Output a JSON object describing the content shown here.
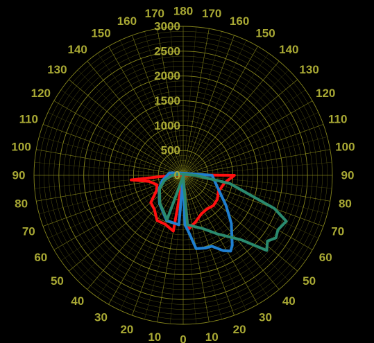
{
  "chart_data": {
    "type": "polar-line",
    "title": "",
    "angle_ticks_left": [
      180,
      170,
      160,
      150,
      140,
      130,
      120,
      110,
      100,
      90,
      80,
      70,
      60,
      50,
      40,
      30,
      20,
      10,
      0
    ],
    "angle_ticks_right": [
      170,
      160,
      150,
      140,
      130,
      120,
      110,
      100,
      90,
      80,
      70,
      60,
      50,
      40,
      30,
      20,
      10
    ],
    "radial_ticks": [
      0,
      500,
      1000,
      1500,
      2000,
      2500,
      3000
    ],
    "rlim": [
      0,
      3000
    ],
    "grid": true,
    "colors": {
      "background": "#000000",
      "grid": "#8c8c1c",
      "labels": "#a8a834"
    },
    "series": [
      {
        "color": "#ff1010",
        "points": [
          {
            "side": "left",
            "angle": 0,
            "r": 20
          },
          {
            "side": "left",
            "angle": 10,
            "r": 1140
          },
          {
            "side": "left",
            "angle": 20,
            "r": 1050
          },
          {
            "side": "left",
            "angle": 30,
            "r": 1050
          },
          {
            "side": "left",
            "angle": 40,
            "r": 900
          },
          {
            "side": "left",
            "angle": 50,
            "r": 850
          },
          {
            "side": "left",
            "angle": 60,
            "r": 620
          },
          {
            "side": "left",
            "angle": 70,
            "r": 560
          },
          {
            "side": "left",
            "angle": 80,
            "r": 700
          },
          {
            "side": "left",
            "angle": 85,
            "r": 1050
          },
          {
            "side": "left",
            "angle": 90,
            "r": 220
          },
          {
            "side": "left",
            "angle": 110,
            "r": 30
          },
          {
            "side": "right",
            "angle": 90,
            "r": 1030
          },
          {
            "side": "right",
            "angle": 80,
            "r": 850
          },
          {
            "side": "right",
            "angle": 65,
            "r": 780
          },
          {
            "side": "right",
            "angle": 55,
            "r": 840
          },
          {
            "side": "right",
            "angle": 45,
            "r": 860
          },
          {
            "side": "right",
            "angle": 35,
            "r": 830
          },
          {
            "side": "right",
            "angle": 25,
            "r": 860
          },
          {
            "side": "right",
            "angle": 15,
            "r": 970
          },
          {
            "side": "right",
            "angle": 5,
            "r": 1100
          },
          {
            "side": "left",
            "angle": 0,
            "r": 20
          }
        ]
      },
      {
        "color": "#1f7fd0",
        "points": [
          {
            "side": "left",
            "angle": 0,
            "r": 20
          },
          {
            "side": "left",
            "angle": 5,
            "r": 1000
          },
          {
            "side": "left",
            "angle": 20,
            "r": 970
          },
          {
            "side": "left",
            "angle": 40,
            "r": 740
          },
          {
            "side": "left",
            "angle": 60,
            "r": 560
          },
          {
            "side": "left",
            "angle": 75,
            "r": 440
          },
          {
            "side": "left",
            "angle": 100,
            "r": 280
          },
          {
            "side": "left",
            "angle": 140,
            "r": 60
          },
          {
            "side": "right",
            "angle": 90,
            "r": 580
          },
          {
            "side": "right",
            "angle": 70,
            "r": 740
          },
          {
            "side": "right",
            "angle": 55,
            "r": 1050
          },
          {
            "side": "right",
            "angle": 45,
            "r": 1370
          },
          {
            "side": "right",
            "angle": 35,
            "r": 1720
          },
          {
            "side": "right",
            "angle": 32,
            "r": 1800
          },
          {
            "side": "right",
            "angle": 28,
            "r": 1720
          },
          {
            "side": "right",
            "angle": 22,
            "r": 1540
          },
          {
            "side": "right",
            "angle": 17,
            "r": 1530
          },
          {
            "side": "right",
            "angle": 10,
            "r": 1500
          },
          {
            "side": "right",
            "angle": 5,
            "r": 1120
          },
          {
            "side": "right",
            "angle": 2,
            "r": 1000
          },
          {
            "side": "left",
            "angle": 0,
            "r": 20
          }
        ]
      },
      {
        "color": "#2a8a6e",
        "points": [
          {
            "side": "left",
            "angle": 0,
            "r": 20
          },
          {
            "side": "left",
            "angle": 20,
            "r": 950
          },
          {
            "side": "left",
            "angle": 40,
            "r": 730
          },
          {
            "side": "left",
            "angle": 60,
            "r": 550
          },
          {
            "side": "left",
            "angle": 75,
            "r": 390
          },
          {
            "side": "left",
            "angle": 90,
            "r": 220
          },
          {
            "side": "left",
            "angle": 130,
            "r": 40
          },
          {
            "side": "right",
            "angle": 90,
            "r": 250
          },
          {
            "side": "right",
            "angle": 80,
            "r": 950
          },
          {
            "side": "right",
            "angle": 70,
            "r": 1950
          },
          {
            "side": "right",
            "angle": 66,
            "r": 2270
          },
          {
            "side": "right",
            "angle": 60,
            "r": 2200
          },
          {
            "side": "right",
            "angle": 56,
            "r": 2250
          },
          {
            "side": "right",
            "angle": 52,
            "r": 2150
          },
          {
            "side": "right",
            "angle": 48,
            "r": 2260
          },
          {
            "side": "right",
            "angle": 42,
            "r": 1750
          },
          {
            "side": "right",
            "angle": 30,
            "r": 1360
          },
          {
            "side": "right",
            "angle": 20,
            "r": 1140
          },
          {
            "side": "right",
            "angle": 5,
            "r": 1000
          },
          {
            "side": "left",
            "angle": 0,
            "r": 20
          }
        ]
      }
    ]
  }
}
